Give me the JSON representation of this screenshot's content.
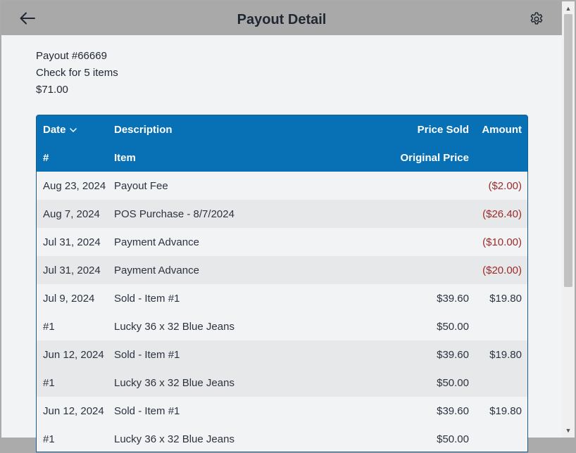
{
  "header": {
    "title": "Payout Detail",
    "back_icon": "arrow-left-icon",
    "settings_icon": "gear-icon"
  },
  "summary": {
    "payout_number": "Payout #66669",
    "check_text": "Check for 5 items",
    "total": "$71.00"
  },
  "table": {
    "headers": {
      "date": "Date",
      "description": "Description",
      "price_sold": "Price Sold",
      "amount": "Amount",
      "number": "#",
      "item": "Item",
      "original_price": "Original Price"
    },
    "rows": [
      {
        "c1": "Aug 23, 2024",
        "c2": "Payout Fee",
        "c3": "",
        "c4": "($2.00)",
        "neg": true,
        "alt": false
      },
      {
        "c1": "Aug 7, 2024",
        "c2": "POS Purchase - 8/7/2024",
        "c3": "",
        "c4": "($26.40)",
        "neg": true,
        "alt": true
      },
      {
        "c1": "Jul 31, 2024",
        "c2": "Payment Advance",
        "c3": "",
        "c4": "($10.00)",
        "neg": true,
        "alt": false
      },
      {
        "c1": "Jul 31, 2024",
        "c2": "Payment Advance",
        "c3": "",
        "c4": "($20.00)",
        "neg": true,
        "alt": true
      },
      {
        "c1": "Jul 9, 2024",
        "c2": "Sold - Item #1",
        "c3": "$39.60",
        "c4": "$19.80",
        "neg": false,
        "alt": false
      },
      {
        "c1": "#1",
        "c2": "Lucky 36 x 32 Blue Jeans",
        "c3": "$50.00",
        "c4": "",
        "neg": false,
        "alt": false
      },
      {
        "c1": "Jun 12, 2024",
        "c2": "Sold - Item #1",
        "c3": "$39.60",
        "c4": "$19.80",
        "neg": false,
        "alt": true
      },
      {
        "c1": "#1",
        "c2": "Lucky 36 x 32 Blue Jeans",
        "c3": "$50.00",
        "c4": "",
        "neg": false,
        "alt": true
      },
      {
        "c1": "Jun 12, 2024",
        "c2": "Sold - Item #1",
        "c3": "$39.60",
        "c4": "$19.80",
        "neg": false,
        "alt": false
      },
      {
        "c1": "#1",
        "c2": "Lucky 36 x 32 Blue Jeans",
        "c3": "$50.00",
        "c4": "",
        "neg": false,
        "alt": false
      }
    ]
  },
  "colors": {
    "header_bg": "#a9a9a9",
    "table_header_bg": "#0870b4",
    "negative_amount": "#9b2b2b",
    "alt_row": "#e7e8ea"
  }
}
